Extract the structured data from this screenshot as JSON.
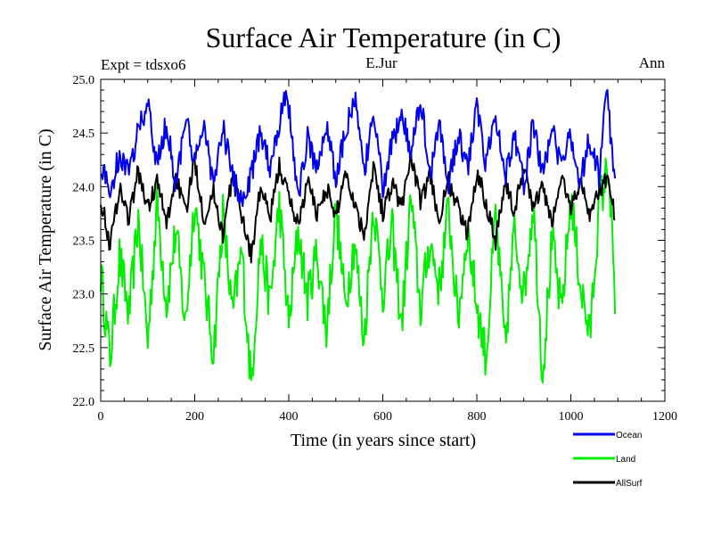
{
  "chart_data": {
    "type": "line",
    "title": "Surface Air Temperature (in C)",
    "left_note": "Expt = tdsxo6",
    "center_note": "E.Jur",
    "right_note": "Ann",
    "xlabel": "Time (in years since start)",
    "ylabel": "Surface Air Temperature (in C)",
    "xlim": [
      0,
      1200
    ],
    "ylim": [
      22.0,
      25.0
    ],
    "x_ticks": [
      0,
      200,
      400,
      600,
      800,
      1000,
      1200
    ],
    "x_tick_labels": [
      "0",
      "200",
      "400",
      "600",
      "800",
      "1000",
      "1200"
    ],
    "y_ticks": [
      22.0,
      22.5,
      23.0,
      23.5,
      24.0,
      24.5,
      25.0
    ],
    "y_tick_labels": [
      "22.0",
      "22.5",
      "23.0",
      "23.5",
      "24.0",
      "24.5",
      "25.0"
    ],
    "x_range": [
      0,
      1094
    ],
    "grid": false,
    "legend_position": "bottom-right, outside plot",
    "series": [
      {
        "name": "Ocean",
        "color": "#0000ee",
        "x": [
          0,
          20,
          40,
          60,
          80,
          100,
          120,
          140,
          160,
          180,
          200,
          220,
          240,
          260,
          280,
          300,
          320,
          340,
          360,
          380,
          395,
          420,
          440,
          460,
          480,
          500,
          520,
          540,
          560,
          580,
          600,
          620,
          640,
          660,
          680,
          700,
          720,
          740,
          760,
          780,
          800,
          820,
          840,
          860,
          880,
          900,
          920,
          940,
          960,
          980,
          1000,
          1020,
          1040,
          1060,
          1075,
          1094
        ],
        "values": [
          24.2,
          23.95,
          24.3,
          24.1,
          24.55,
          24.75,
          24.2,
          24.6,
          24.0,
          24.65,
          24.2,
          24.6,
          24.0,
          24.55,
          24.1,
          23.85,
          24.1,
          24.5,
          24.2,
          24.6,
          24.93,
          23.9,
          24.45,
          24.15,
          24.6,
          24.05,
          24.5,
          24.85,
          24.1,
          24.7,
          24.0,
          24.4,
          24.7,
          24.25,
          24.85,
          24.1,
          24.6,
          24.0,
          24.5,
          24.15,
          24.75,
          24.2,
          24.7,
          24.1,
          24.5,
          24.0,
          24.6,
          24.1,
          24.55,
          24.15,
          24.5,
          24.05,
          24.45,
          24.1,
          24.92,
          24.05
        ]
      },
      {
        "name": "Land",
        "color": "#00ee00",
        "x": [
          0,
          20,
          40,
          60,
          80,
          100,
          120,
          140,
          160,
          180,
          200,
          220,
          240,
          260,
          280,
          300,
          320,
          340,
          360,
          380,
          400,
          420,
          440,
          460,
          480,
          500,
          520,
          540,
          560,
          580,
          600,
          620,
          640,
          660,
          680,
          700,
          720,
          740,
          760,
          780,
          800,
          820,
          840,
          860,
          880,
          900,
          920,
          940,
          960,
          980,
          1000,
          1020,
          1040,
          1060,
          1080,
          1094
        ],
        "values": [
          23.2,
          22.4,
          23.35,
          22.8,
          23.7,
          22.55,
          23.85,
          22.9,
          23.6,
          22.7,
          23.9,
          23.1,
          22.45,
          23.75,
          22.8,
          23.4,
          22.15,
          23.5,
          22.9,
          23.85,
          22.7,
          23.6,
          22.95,
          23.4,
          22.65,
          23.8,
          22.9,
          23.5,
          22.55,
          23.85,
          23.0,
          23.6,
          22.7,
          23.9,
          22.85,
          23.5,
          23.05,
          23.8,
          22.75,
          23.6,
          22.9,
          22.4,
          23.75,
          22.5,
          23.6,
          23.0,
          23.85,
          22.25,
          23.5,
          22.8,
          23.9,
          23.1,
          22.6,
          23.8,
          24.2,
          22.9
        ]
      },
      {
        "name": "AllSurf",
        "color": "#000000",
        "x": [
          0,
          20,
          40,
          60,
          80,
          100,
          120,
          140,
          160,
          180,
          200,
          220,
          240,
          260,
          280,
          300,
          320,
          340,
          360,
          380,
          400,
          420,
          440,
          460,
          480,
          500,
          520,
          540,
          560,
          580,
          600,
          620,
          640,
          660,
          680,
          700,
          720,
          740,
          760,
          780,
          800,
          820,
          840,
          860,
          880,
          900,
          920,
          940,
          960,
          980,
          1000,
          1020,
          1040,
          1060,
          1080,
          1094
        ],
        "values": [
          23.9,
          23.45,
          24.0,
          23.7,
          24.15,
          23.8,
          24.05,
          23.65,
          24.1,
          23.75,
          24.25,
          23.7,
          23.95,
          23.55,
          24.1,
          23.75,
          23.35,
          24.0,
          23.7,
          24.2,
          23.9,
          23.65,
          24.05,
          23.75,
          24.0,
          23.7,
          24.15,
          23.85,
          23.55,
          24.2,
          23.75,
          24.05,
          23.8,
          24.3,
          23.85,
          24.1,
          23.7,
          24.05,
          23.8,
          23.55,
          24.15,
          23.85,
          23.5,
          24.05,
          23.75,
          24.2,
          23.8,
          24.0,
          23.65,
          24.1,
          23.8,
          24.05,
          23.75,
          23.95,
          24.1,
          23.7
        ]
      }
    ]
  }
}
